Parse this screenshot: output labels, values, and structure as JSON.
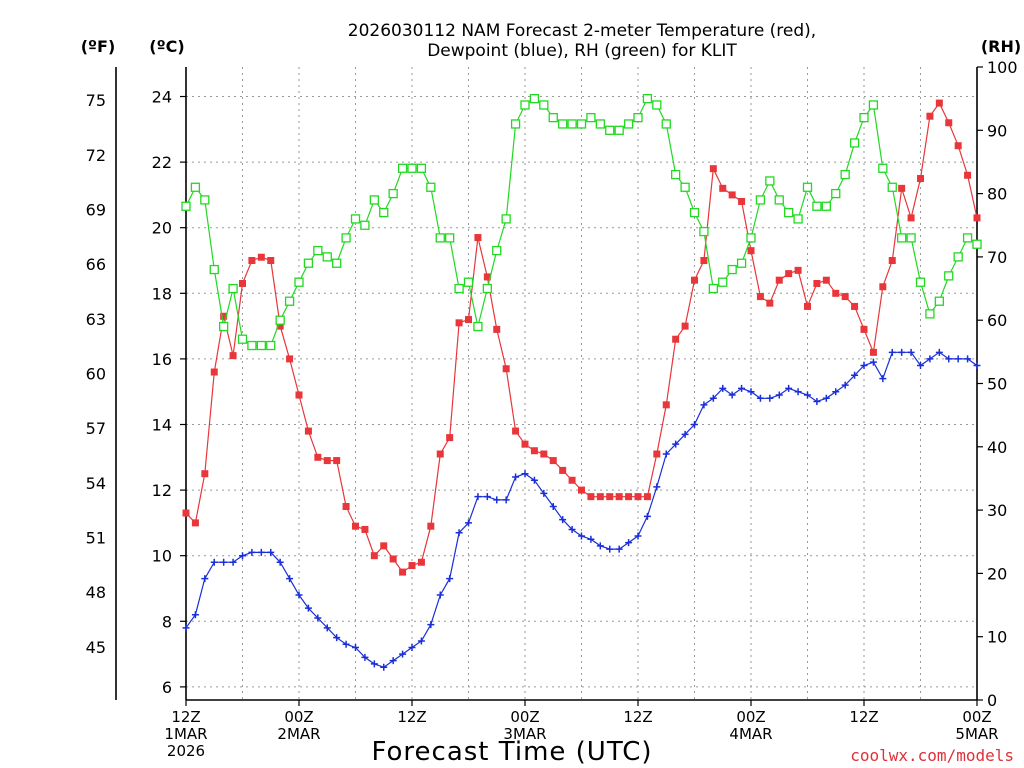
{
  "chart_data": {
    "type": "line",
    "title_lines": [
      "2026030112 NAM Forecast 2-meter Temperature (red),",
      "Dewpoint (blue), RH (green) for KLIT"
    ],
    "xlabel": "Forecast Time (UTC)",
    "credit": "coolwx.com/models",
    "unit_labels": {
      "fahrenheit": "(ºF)",
      "celsius": "(ºC)",
      "rh": "(RH)"
    },
    "x_range_hours": [
      0,
      84
    ],
    "celsius_range": [
      5.6,
      24.9
    ],
    "rh_range": [
      0,
      100
    ],
    "grid": true,
    "celsius_ticks": [
      6,
      8,
      10,
      12,
      14,
      16,
      18,
      20,
      22,
      24
    ],
    "fahrenheit_ticks": [
      45,
      48,
      51,
      54,
      57,
      60,
      63,
      66,
      69,
      72,
      75
    ],
    "rh_ticks": [
      0,
      10,
      20,
      30,
      40,
      50,
      60,
      70,
      80,
      90,
      100
    ],
    "x_ticks": [
      {
        "hour": 0,
        "lines": [
          "12Z",
          "1MAR",
          "2026"
        ]
      },
      {
        "hour": 12,
        "lines": [
          "00Z",
          "2MAR"
        ]
      },
      {
        "hour": 24,
        "lines": [
          "12Z"
        ]
      },
      {
        "hour": 36,
        "lines": [
          "00Z",
          "3MAR"
        ]
      },
      {
        "hour": 48,
        "lines": [
          "12Z"
        ]
      },
      {
        "hour": 60,
        "lines": [
          "00Z",
          "4MAR"
        ]
      },
      {
        "hour": 72,
        "lines": [
          "12Z"
        ]
      },
      {
        "hour": 84,
        "lines": [
          "00Z",
          "5MAR"
        ]
      }
    ],
    "series": [
      {
        "name": "Temperature",
        "axis": "celsius",
        "color": "#e8363a",
        "marker": "square-filled",
        "x": [
          0,
          1,
          2,
          3,
          4,
          5,
          6,
          7,
          8,
          9,
          10,
          11,
          12,
          13,
          14,
          15,
          16,
          17,
          18,
          19,
          20,
          21,
          22,
          23,
          24,
          25,
          26,
          27,
          28,
          29,
          30,
          31,
          32,
          33,
          34,
          35,
          36,
          37,
          38,
          39,
          40,
          41,
          42,
          43,
          44,
          45,
          46,
          47,
          48,
          49,
          50,
          51,
          52,
          53,
          54,
          55,
          56,
          57,
          58,
          59,
          60,
          61,
          62,
          63,
          64,
          65,
          66,
          67,
          68,
          69,
          70,
          71,
          72,
          73,
          74,
          75,
          76,
          77,
          78,
          79,
          80,
          81,
          82,
          83,
          84
        ],
        "values": [
          11.3,
          11.0,
          12.5,
          15.6,
          17.3,
          16.1,
          18.3,
          19.0,
          19.1,
          19.0,
          17.0,
          16.0,
          14.9,
          13.8,
          13.0,
          12.9,
          12.9,
          11.5,
          10.9,
          10.8,
          10.0,
          10.3,
          9.9,
          9.5,
          9.7,
          9.8,
          10.9,
          13.1,
          13.6,
          17.1,
          17.2,
          19.7,
          18.5,
          16.9,
          15.7,
          13.8,
          13.4,
          13.2,
          13.1,
          12.9,
          12.6,
          12.3,
          12.0,
          11.8,
          11.8,
          11.8,
          11.8,
          11.8,
          11.8,
          11.8,
          13.1,
          14.6,
          16.6,
          17.0,
          18.4,
          19.0,
          21.8,
          21.2,
          21.0,
          20.8,
          19.3,
          17.9,
          17.7,
          18.4,
          18.6,
          18.7,
          17.6,
          18.3,
          18.4,
          18.0,
          17.9,
          17.6,
          16.9,
          16.2,
          18.2,
          19.0,
          21.2,
          20.3,
          21.5,
          23.4,
          23.8,
          23.2,
          22.5,
          21.6,
          20.3
        ]
      },
      {
        "name": "Dewpoint",
        "axis": "celsius",
        "color": "#1a2fd8",
        "marker": "plus",
        "x": [
          0,
          1,
          2,
          3,
          4,
          5,
          6,
          7,
          8,
          9,
          10,
          11,
          12,
          13,
          14,
          15,
          16,
          17,
          18,
          19,
          20,
          21,
          22,
          23,
          24,
          25,
          26,
          27,
          28,
          29,
          30,
          31,
          32,
          33,
          34,
          35,
          36,
          37,
          38,
          39,
          40,
          41,
          42,
          43,
          44,
          45,
          46,
          47,
          48,
          49,
          50,
          51,
          52,
          53,
          54,
          55,
          56,
          57,
          58,
          59,
          60,
          61,
          62,
          63,
          64,
          65,
          66,
          67,
          68,
          69,
          70,
          71,
          72,
          73,
          74,
          75,
          76,
          77,
          78,
          79,
          80,
          81,
          82,
          83,
          84
        ],
        "values": [
          7.8,
          8.2,
          9.3,
          9.8,
          9.8,
          9.8,
          10.0,
          10.1,
          10.1,
          10.1,
          9.8,
          9.3,
          8.8,
          8.4,
          8.1,
          7.8,
          7.5,
          7.3,
          7.2,
          6.9,
          6.7,
          6.6,
          6.8,
          7.0,
          7.2,
          7.4,
          7.9,
          8.8,
          9.3,
          10.7,
          11.0,
          11.8,
          11.8,
          11.7,
          11.7,
          12.4,
          12.5,
          12.3,
          11.9,
          11.5,
          11.1,
          10.8,
          10.6,
          10.5,
          10.3,
          10.2,
          10.2,
          10.4,
          10.6,
          11.2,
          12.1,
          13.1,
          13.4,
          13.7,
          14.0,
          14.6,
          14.8,
          15.1,
          14.9,
          15.1,
          15.0,
          14.8,
          14.8,
          14.9,
          15.1,
          15.0,
          14.9,
          14.7,
          14.8,
          15.0,
          15.2,
          15.5,
          15.8,
          15.9,
          15.4,
          16.2,
          16.2,
          16.2,
          15.8,
          16.0,
          16.2,
          16.0,
          16.0,
          16.0,
          15.8
        ]
      },
      {
        "name": "RH",
        "axis": "rh",
        "color": "#22d922",
        "marker": "square-open",
        "x": [
          0,
          1,
          2,
          3,
          4,
          5,
          6,
          7,
          8,
          9,
          10,
          11,
          12,
          13,
          14,
          15,
          16,
          17,
          18,
          19,
          20,
          21,
          22,
          23,
          24,
          25,
          26,
          27,
          28,
          29,
          30,
          31,
          32,
          33,
          34,
          35,
          36,
          37,
          38,
          39,
          40,
          41,
          42,
          43,
          44,
          45,
          46,
          47,
          48,
          49,
          50,
          51,
          52,
          53,
          54,
          55,
          56,
          57,
          58,
          59,
          60,
          61,
          62,
          63,
          64,
          65,
          66,
          67,
          68,
          69,
          70,
          71,
          72,
          73,
          74,
          75,
          76,
          77,
          78,
          79,
          80,
          81,
          82,
          83,
          84
        ],
        "values": [
          78,
          81,
          79,
          68,
          59,
          65,
          57,
          56,
          56,
          56,
          60,
          63,
          66,
          69,
          71,
          70,
          69,
          73,
          76,
          75,
          79,
          77,
          80,
          84,
          84,
          84,
          81,
          73,
          73,
          65,
          66,
          59,
          65,
          71,
          76,
          91,
          94,
          95,
          94,
          92,
          91,
          91,
          91,
          92,
          91,
          90,
          90,
          91,
          92,
          95,
          94,
          91,
          83,
          81,
          77,
          74,
          65,
          66,
          68,
          69,
          73,
          79,
          82,
          79,
          77,
          76,
          81,
          78,
          78,
          80,
          83,
          88,
          92,
          94,
          84,
          81,
          73,
          73,
          66,
          61,
          63,
          67,
          70,
          73,
          72
        ]
      }
    ]
  }
}
